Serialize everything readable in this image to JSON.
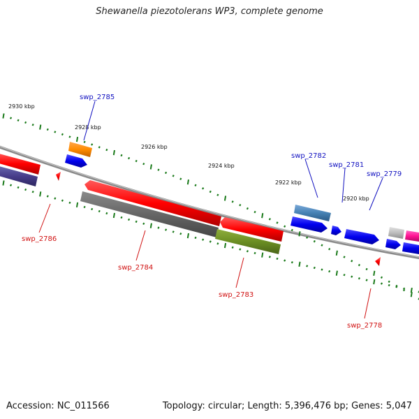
{
  "title": "Shewanella piezotolerans WP3, complete genome",
  "footer": {
    "accession": "Accession: NC_011566",
    "summary": "Topology: circular; Length: 5,396,476 bp; Genes: 5,047"
  },
  "colors": {
    "backbone": "#8a8a8a",
    "tick": "#1a7a1a",
    "forward_label": "#1010c0",
    "reverse_label": "#d01010"
  },
  "scale_labels": [
    {
      "text": "2930 kbp"
    },
    {
      "text": "2928 kbp"
    },
    {
      "text": "2926 kbp"
    },
    {
      "text": "2924 kbp"
    },
    {
      "text": "2922 kbp"
    },
    {
      "text": "2920 kbp"
    }
  ],
  "genes": [
    {
      "id": "swp_2786",
      "strand": "reverse",
      "label": "swp_2786",
      "color": "#ff0000"
    },
    {
      "id": "swp_2785",
      "strand": "forward",
      "label": "swp_2785",
      "color": "#0000ee"
    },
    {
      "id": "swp_2784",
      "strand": "reverse",
      "label": "swp_2784",
      "color": "#ff0000"
    },
    {
      "id": "swp_2783",
      "strand": "reverse",
      "label": "swp_2783",
      "color": "#ff0000"
    },
    {
      "id": "swp_2782",
      "strand": "forward",
      "label": "swp_2782",
      "color": "#0000ee"
    },
    {
      "id": "swp_2781",
      "strand": "forward",
      "label": "swp_2781",
      "color": "#0000ee"
    },
    {
      "id": "swp_2779",
      "strand": "forward",
      "label": "swp_2779",
      "color": "#0000ee"
    },
    {
      "id": "swp_2778",
      "strand": "reverse",
      "label": "swp_2778",
      "color": "#ff0000"
    }
  ]
}
